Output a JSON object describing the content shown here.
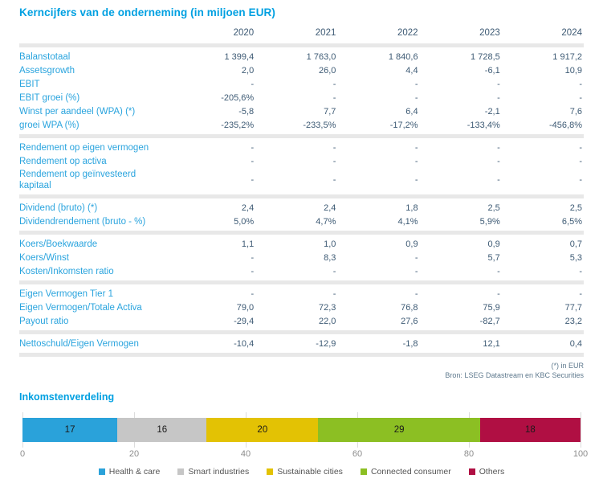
{
  "table": {
    "title": "Kerncijfers van de onderneming (in miljoen EUR)",
    "years": [
      "2020",
      "2021",
      "2022",
      "2023",
      "2024"
    ],
    "sections": [
      {
        "rows": [
          {
            "label": "Balanstotaal",
            "values": [
              "1 399,4",
              "1 763,0",
              "1 840,6",
              "1 728,5",
              "1 917,2"
            ]
          },
          {
            "label": "Assetsgrowth",
            "values": [
              "2,0",
              "26,0",
              "4,4",
              "-6,1",
              "10,9"
            ]
          },
          {
            "label": "EBIT",
            "values": [
              "-",
              "-",
              "-",
              "-",
              "-"
            ]
          },
          {
            "label": "EBIT groei (%)",
            "values": [
              "-205,6%",
              "-",
              "-",
              "-",
              "-"
            ]
          },
          {
            "label": "Winst per aandeel (WPA) (*)",
            "values": [
              "-5,8",
              "7,7",
              "6,4",
              "-2,1",
              "7,6"
            ]
          },
          {
            "label": "groei WPA (%)",
            "values": [
              "-235,2%",
              "-233,5%",
              "-17,2%",
              "-133,4%",
              "-456,8%"
            ]
          }
        ]
      },
      {
        "rows": [
          {
            "label": "Rendement op eigen vermogen",
            "values": [
              "-",
              "-",
              "-",
              "-",
              "-"
            ]
          },
          {
            "label": "Rendement op activa",
            "values": [
              "-",
              "-",
              "-",
              "-",
              "-"
            ]
          },
          {
            "label": "Rendement op geïnvesteerd kapitaal",
            "values": [
              "-",
              "-",
              "-",
              "-",
              "-"
            ]
          }
        ]
      },
      {
        "rows": [
          {
            "label": "Dividend (bruto) (*)",
            "values": [
              "2,4",
              "2,4",
              "1,8",
              "2,5",
              "2,5"
            ]
          },
          {
            "label": "Dividendrendement (bruto - %)",
            "values": [
              "5,0%",
              "4,7%",
              "4,1%",
              "5,9%",
              "6,5%"
            ]
          }
        ]
      },
      {
        "rows": [
          {
            "label": "Koers/Boekwaarde",
            "values": [
              "1,1",
              "1,0",
              "0,9",
              "0,9",
              "0,7"
            ]
          },
          {
            "label": "Koers/Winst",
            "values": [
              "-",
              "8,3",
              "-",
              "5,7",
              "5,3"
            ]
          },
          {
            "label": "Kosten/Inkomsten ratio",
            "values": [
              "-",
              "-",
              "-",
              "-",
              "-"
            ]
          }
        ]
      },
      {
        "rows": [
          {
            "label": "Eigen Vermogen Tier 1",
            "values": [
              "-",
              "-",
              "-",
              "-",
              "-"
            ]
          },
          {
            "label": "Eigen Vermogen/Totale Activa",
            "values": [
              "79,0",
              "72,3",
              "76,8",
              "75,9",
              "77,7"
            ]
          },
          {
            "label": "Payout ratio",
            "values": [
              "-29,4",
              "22,0",
              "27,6",
              "-82,7",
              "23,2"
            ]
          }
        ]
      },
      {
        "rows": [
          {
            "label": "Nettoschuld/Eigen Vermogen",
            "values": [
              "-10,4",
              "-12,9",
              "-1,8",
              "12,1",
              "0,4"
            ]
          }
        ]
      }
    ],
    "footnotes": [
      "(*) in EUR",
      "Bron: LSEG Datastream en KBC Securities"
    ]
  },
  "chart_data": {
    "type": "bar",
    "stacked": true,
    "orientation": "horizontal",
    "title": "Inkomstenverdeling",
    "segments": [
      {
        "label": "Health & care",
        "value": 17,
        "color": "#2aa2da"
      },
      {
        "label": "Smart industries",
        "value": 16,
        "color": "#c6c6c6"
      },
      {
        "label": "Sustainable cities",
        "value": 20,
        "color": "#e3c204"
      },
      {
        "label": "Connected consumer",
        "value": 29,
        "color": "#8cbf23"
      },
      {
        "label": "Others",
        "value": 18,
        "color": "#b00f43"
      }
    ],
    "xlim": [
      0,
      100
    ],
    "xticks": [
      0,
      20,
      40,
      60,
      80,
      100
    ],
    "legend_position": "bottom",
    "grid": "vertical-ticks"
  }
}
